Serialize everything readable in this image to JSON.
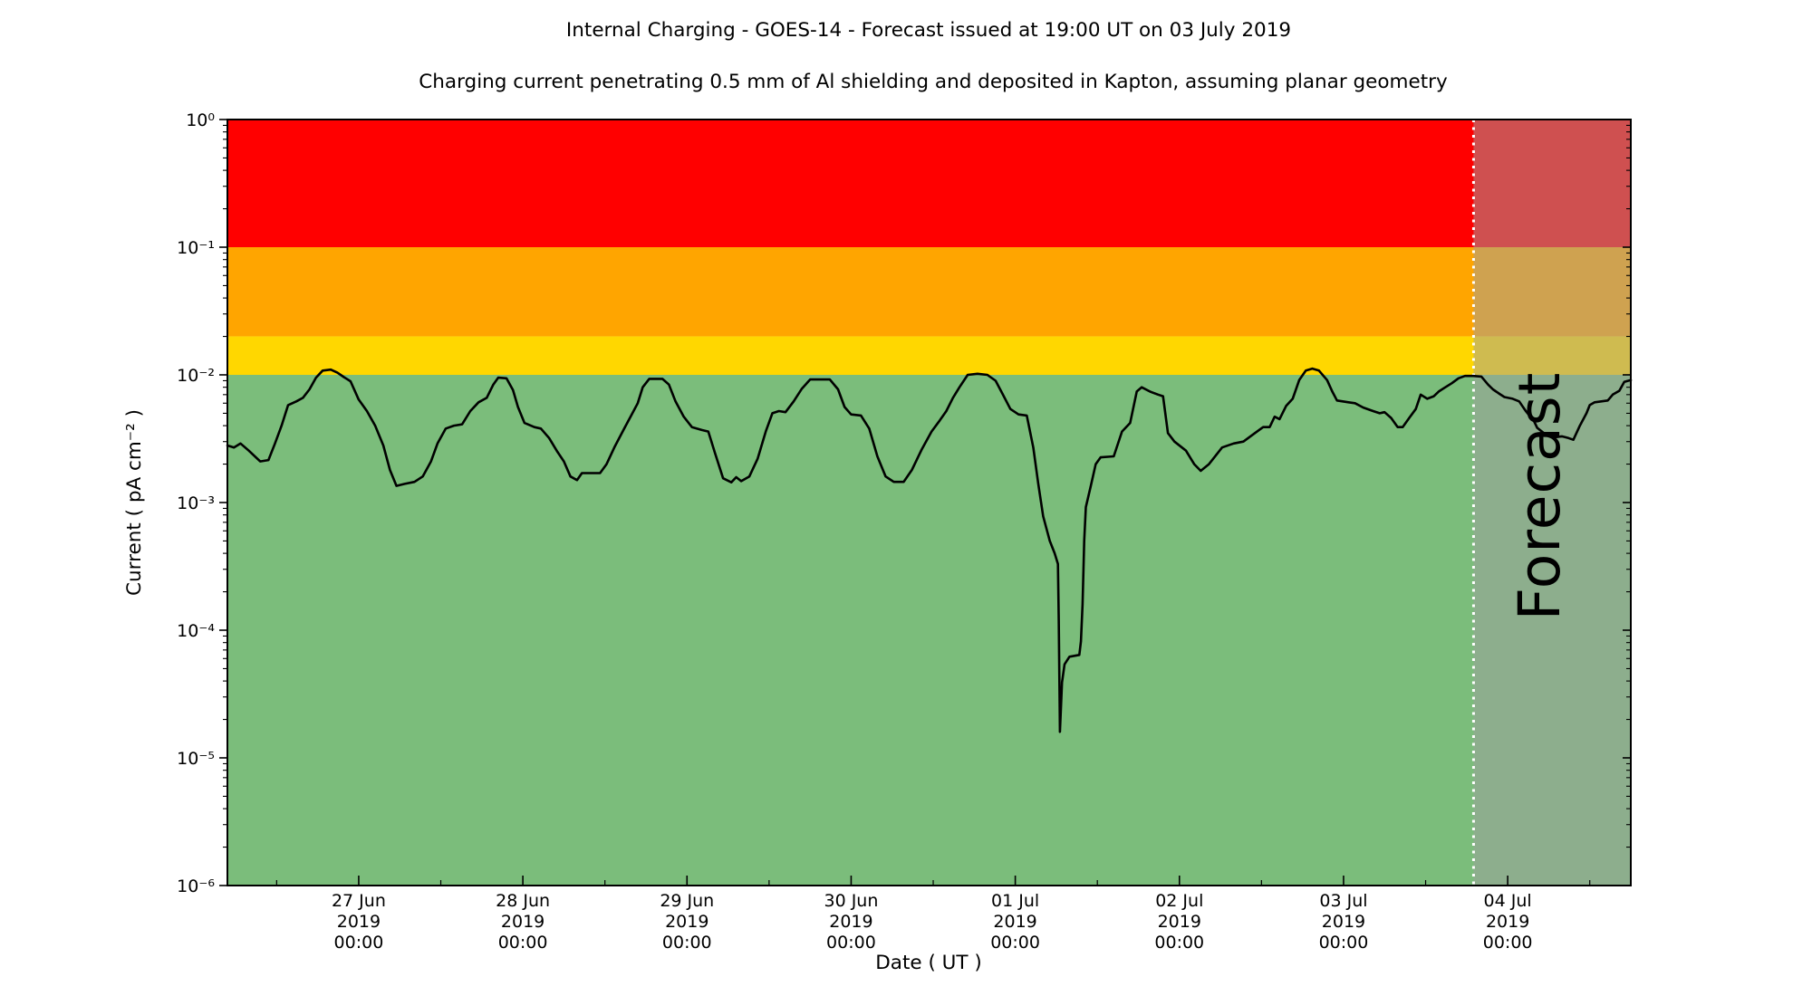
{
  "header": {
    "title": "Internal Charging - GOES-14 - Forecast issued at 19:00 UT on 03 July 2019",
    "subtitle": "Charging current penetrating 0.5 mm of Al shielding and deposited in Kapton, assuming planar geometry"
  },
  "chart_data": {
    "type": "line",
    "title": "Internal Charging - GOES-14 - Forecast issued at 19:00 UT on 03 July 2019",
    "subtitle": "Charging current penetrating 0.5 mm of Al shielding and deposited in Kapton, assuming planar geometry",
    "xlabel": "Date ( UT )",
    "ylabel": "Current ( pA cm⁻² )",
    "x_unit": "days since 2019-06-26 00:00 UT",
    "x_domain": [
      0.2,
      8.75
    ],
    "y_domain": [
      1e-06,
      1.0
    ],
    "y_scale": "log",
    "x_minor_tick_days": 0.5,
    "x_ticks": [
      {
        "d": 1,
        "date": "27 Jun"
      },
      {
        "d": 2,
        "date": "28 Jun"
      },
      {
        "d": 3,
        "date": "29 Jun"
      },
      {
        "d": 4,
        "date": "30 Jun"
      },
      {
        "d": 5,
        "date": "01 Jul"
      },
      {
        "d": 6,
        "date": "02 Jul"
      },
      {
        "d": 7,
        "date": "03 Jul"
      },
      {
        "d": 8,
        "date": "04 Jul"
      }
    ],
    "x_tick_line2": "2019",
    "x_tick_line3": "00:00",
    "y_ticks": [
      {
        "exp": 0,
        "label": "10⁰"
      },
      {
        "exp": -1,
        "label": "10⁻¹"
      },
      {
        "exp": -2,
        "label": "10⁻²"
      },
      {
        "exp": -3,
        "label": "10⁻³"
      },
      {
        "exp": -4,
        "label": "10⁻⁴"
      },
      {
        "exp": -5,
        "label": "10⁻⁵"
      },
      {
        "exp": -6,
        "label": "10⁻⁶"
      }
    ],
    "bands": [
      {
        "name": "red-alert-band",
        "from": 0.1,
        "to": 1.0,
        "color": "#ff0000"
      },
      {
        "name": "orange-alert-band",
        "from": 0.02,
        "to": 0.1,
        "color": "#ffa500"
      },
      {
        "name": "yellow-alert-band",
        "from": 0.01,
        "to": 0.02,
        "color": "#ffd700"
      },
      {
        "name": "green-safe-band",
        "from": 1e-06,
        "to": 0.01,
        "color": "#7bbd7b"
      }
    ],
    "forecast": {
      "label": "Forecast",
      "start_day": 7.792,
      "start_label": "03 Jul 19:00 UT",
      "overlay_color": "rgba(160,160,160,0.5)",
      "divider_color": "#ffffff",
      "label_color": "rgba(88,95,86,0.55)"
    },
    "line_color": "#000000",
    "series": [
      [
        0.2,
        0.0028
      ],
      [
        0.24,
        0.0027
      ],
      [
        0.28,
        0.0029
      ],
      [
        0.33,
        0.00255
      ],
      [
        0.4,
        0.0021
      ],
      [
        0.45,
        0.00215
      ],
      [
        0.49,
        0.0029
      ],
      [
        0.53,
        0.004
      ],
      [
        0.57,
        0.0058
      ],
      [
        0.62,
        0.0062
      ],
      [
        0.66,
        0.0066
      ],
      [
        0.7,
        0.0077
      ],
      [
        0.74,
        0.0095
      ],
      [
        0.78,
        0.0108
      ],
      [
        0.83,
        0.011
      ],
      [
        0.87,
        0.0104
      ],
      [
        0.91,
        0.0096
      ],
      [
        0.95,
        0.0089
      ],
      [
        1.0,
        0.0064
      ],
      [
        1.05,
        0.0052
      ],
      [
        1.1,
        0.004
      ],
      [
        1.15,
        0.0028
      ],
      [
        1.19,
        0.0018
      ],
      [
        1.23,
        0.00135
      ],
      [
        1.28,
        0.0014
      ],
      [
        1.34,
        0.00145
      ],
      [
        1.39,
        0.0016
      ],
      [
        1.44,
        0.0021
      ],
      [
        1.48,
        0.0029
      ],
      [
        1.53,
        0.0038
      ],
      [
        1.58,
        0.004
      ],
      [
        1.63,
        0.0041
      ],
      [
        1.68,
        0.0052
      ],
      [
        1.73,
        0.0061
      ],
      [
        1.78,
        0.0066
      ],
      [
        1.82,
        0.0084
      ],
      [
        1.85,
        0.0095
      ],
      [
        1.9,
        0.0094
      ],
      [
        1.94,
        0.0076
      ],
      [
        1.97,
        0.0056
      ],
      [
        2.01,
        0.0042
      ],
      [
        2.07,
        0.0039
      ],
      [
        2.11,
        0.0038
      ],
      [
        2.16,
        0.0032
      ],
      [
        2.21,
        0.0025
      ],
      [
        2.25,
        0.0021
      ],
      [
        2.29,
        0.0016
      ],
      [
        2.33,
        0.0015
      ],
      [
        2.36,
        0.0017
      ],
      [
        2.47,
        0.0017
      ],
      [
        2.51,
        0.002
      ],
      [
        2.56,
        0.00275
      ],
      [
        2.62,
        0.00385
      ],
      [
        2.66,
        0.0048
      ],
      [
        2.7,
        0.006
      ],
      [
        2.73,
        0.008
      ],
      [
        2.77,
        0.0093
      ],
      [
        2.85,
        0.0093
      ],
      [
        2.89,
        0.0084
      ],
      [
        2.93,
        0.0062
      ],
      [
        2.98,
        0.0047
      ],
      [
        3.03,
        0.0039
      ],
      [
        3.09,
        0.0037
      ],
      [
        3.13,
        0.0036
      ],
      [
        3.17,
        0.00245
      ],
      [
        3.22,
        0.00155
      ],
      [
        3.27,
        0.00144
      ],
      [
        3.3,
        0.00158
      ],
      [
        3.33,
        0.00147
      ],
      [
        3.38,
        0.0016
      ],
      [
        3.43,
        0.0022
      ],
      [
        3.48,
        0.0036
      ],
      [
        3.52,
        0.005
      ],
      [
        3.56,
        0.0052
      ],
      [
        3.6,
        0.0051
      ],
      [
        3.65,
        0.0062
      ],
      [
        3.7,
        0.0078
      ],
      [
        3.75,
        0.0092
      ],
      [
        3.87,
        0.0092
      ],
      [
        3.92,
        0.0077
      ],
      [
        3.96,
        0.0056
      ],
      [
        4.0,
        0.0049
      ],
      [
        4.06,
        0.0048
      ],
      [
        4.11,
        0.0038
      ],
      [
        4.16,
        0.0023
      ],
      [
        4.21,
        0.0016
      ],
      [
        4.26,
        0.00145
      ],
      [
        4.32,
        0.00145
      ],
      [
        4.37,
        0.0018
      ],
      [
        4.43,
        0.0026
      ],
      [
        4.49,
        0.0036
      ],
      [
        4.54,
        0.0044
      ],
      [
        4.58,
        0.0052
      ],
      [
        4.62,
        0.0066
      ],
      [
        4.66,
        0.008
      ],
      [
        4.71,
        0.01
      ],
      [
        4.77,
        0.0102
      ],
      [
        4.83,
        0.01
      ],
      [
        4.88,
        0.009
      ],
      [
        4.92,
        0.0072
      ],
      [
        4.97,
        0.0054
      ],
      [
        5.02,
        0.0049
      ],
      [
        5.07,
        0.0048
      ],
      [
        5.11,
        0.0027
      ],
      [
        5.14,
        0.0014
      ],
      [
        5.17,
        0.00078
      ],
      [
        5.21,
        0.0005
      ],
      [
        5.24,
        0.0004
      ],
      [
        5.26,
        0.00033
      ],
      [
        5.265,
        0.00012
      ],
      [
        5.272,
        1.6e-05
      ],
      [
        5.285,
        3.9e-05
      ],
      [
        5.3,
        5.4e-05
      ],
      [
        5.33,
        6.2e-05
      ],
      [
        5.39,
        6.4e-05
      ],
      [
        5.4,
        8.2e-05
      ],
      [
        5.41,
        0.00016
      ],
      [
        5.42,
        0.0005
      ],
      [
        5.43,
        0.00092
      ],
      [
        5.46,
        0.00135
      ],
      [
        5.49,
        0.002
      ],
      [
        5.52,
        0.00226
      ],
      [
        5.6,
        0.0023
      ],
      [
        5.65,
        0.0036
      ],
      [
        5.7,
        0.0042
      ],
      [
        5.74,
        0.0074
      ],
      [
        5.77,
        0.008
      ],
      [
        5.82,
        0.0074
      ],
      [
        5.87,
        0.007
      ],
      [
        5.9,
        0.0068
      ],
      [
        5.93,
        0.0035
      ],
      [
        5.97,
        0.003
      ],
      [
        6.04,
        0.00255
      ],
      [
        6.09,
        0.002
      ],
      [
        6.13,
        0.00177
      ],
      [
        6.18,
        0.002
      ],
      [
        6.26,
        0.0027
      ],
      [
        6.33,
        0.0029
      ],
      [
        6.39,
        0.003
      ],
      [
        6.46,
        0.0035
      ],
      [
        6.51,
        0.0039
      ],
      [
        6.55,
        0.0039
      ],
      [
        6.58,
        0.0047
      ],
      [
        6.61,
        0.0045
      ],
      [
        6.65,
        0.0057
      ],
      [
        6.69,
        0.0065
      ],
      [
        6.73,
        0.0091
      ],
      [
        6.77,
        0.0108
      ],
      [
        6.81,
        0.0112
      ],
      [
        6.85,
        0.0108
      ],
      [
        6.9,
        0.0091
      ],
      [
        6.93,
        0.00745
      ],
      [
        6.96,
        0.0063
      ],
      [
        7.03,
        0.0061
      ],
      [
        7.07,
        0.006
      ],
      [
        7.12,
        0.00555
      ],
      [
        7.18,
        0.0052
      ],
      [
        7.22,
        0.005
      ],
      [
        7.25,
        0.0051
      ],
      [
        7.29,
        0.0046
      ],
      [
        7.33,
        0.0039
      ],
      [
        7.36,
        0.0039
      ],
      [
        7.4,
        0.0046
      ],
      [
        7.44,
        0.0054
      ],
      [
        7.47,
        0.007
      ],
      [
        7.51,
        0.0065
      ],
      [
        7.55,
        0.0068
      ],
      [
        7.58,
        0.0074
      ],
      [
        7.62,
        0.008
      ],
      [
        7.66,
        0.0086
      ],
      [
        7.7,
        0.0094
      ],
      [
        7.74,
        0.0098
      ],
      [
        7.79,
        0.0098
      ],
      [
        7.84,
        0.0097
      ],
      [
        7.88,
        0.0084
      ],
      [
        7.91,
        0.0077
      ],
      [
        7.95,
        0.0071
      ],
      [
        7.98,
        0.0067
      ],
      [
        8.03,
        0.0065
      ],
      [
        8.07,
        0.0062
      ],
      [
        8.11,
        0.0052
      ],
      [
        8.16,
        0.00435
      ],
      [
        8.18,
        0.00385
      ],
      [
        8.22,
        0.0035
      ],
      [
        8.26,
        0.0033
      ],
      [
        8.29,
        0.00325
      ],
      [
        8.33,
        0.0033
      ],
      [
        8.37,
        0.0032
      ],
      [
        8.4,
        0.0031
      ],
      [
        8.44,
        0.004
      ],
      [
        8.48,
        0.005
      ],
      [
        8.5,
        0.0058
      ],
      [
        8.53,
        0.0061
      ],
      [
        8.57,
        0.0062
      ],
      [
        8.61,
        0.0063
      ],
      [
        8.64,
        0.007
      ],
      [
        8.68,
        0.0075
      ],
      [
        8.71,
        0.0088
      ],
      [
        8.75,
        0.0091
      ]
    ],
    "grid": false,
    "legend": null
  }
}
